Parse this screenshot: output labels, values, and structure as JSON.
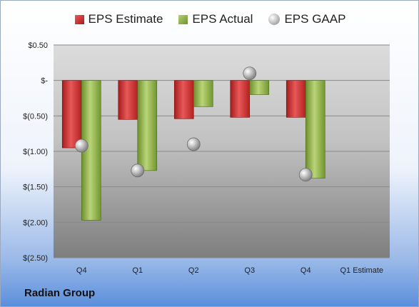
{
  "legend": {
    "estimate": "EPS Estimate",
    "actual": "EPS Actual",
    "gaap": "EPS GAAP"
  },
  "company": "Radian Group",
  "colors": {
    "estimate": "#c62828",
    "actual": "#7ea33a",
    "gaap": "#a8a8a8"
  },
  "chart_data": {
    "type": "bar",
    "categories": [
      "Q4",
      "Q1",
      "Q2",
      "Q3",
      "Q4",
      "Q1 Estimate"
    ],
    "series": [
      {
        "name": "EPS Estimate",
        "values": [
          -0.95,
          -0.55,
          -0.54,
          -0.52,
          -0.52,
          null
        ]
      },
      {
        "name": "EPS Actual",
        "values": [
          -1.97,
          -1.27,
          -0.37,
          -0.2,
          -1.38,
          null
        ]
      },
      {
        "name": "EPS GAAP",
        "type": "scatter",
        "values": [
          -0.92,
          -1.27,
          -0.9,
          0.1,
          -1.33,
          null
        ]
      }
    ],
    "ylim": [
      -2.5,
      0.5
    ],
    "yticks": [
      0.5,
      0,
      -0.5,
      -1.0,
      -1.5,
      -2.0,
      -2.5
    ],
    "ytick_labels": [
      "$0.50",
      "$-",
      "$(0.50)",
      "$(1.00)",
      "$(1.50)",
      "$(2.00)",
      "$(2.50)"
    ],
    "grid": true
  }
}
